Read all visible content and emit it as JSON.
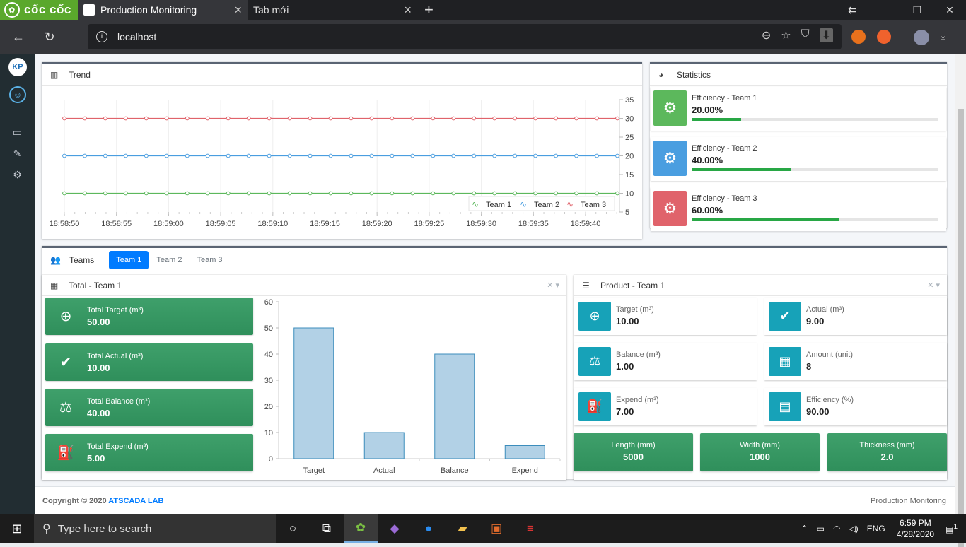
{
  "browser": {
    "brand": "cốc cốc",
    "tabs": [
      {
        "title": "Production Monitoring",
        "active": true
      },
      {
        "title": "Tab mới",
        "active": false
      }
    ],
    "url": "localhost"
  },
  "trend": {
    "title": "Trend",
    "legend": [
      "Team 1",
      "Team 2",
      "Team 3"
    ],
    "colors": [
      "#5cb85c",
      "#4a9ee0",
      "#e0636b"
    ]
  },
  "chart_data": [
    {
      "type": "line",
      "title": "Trend",
      "x": [
        "18:58:50",
        "18:58:55",
        "18:59:00",
        "18:59:05",
        "18:59:10",
        "18:59:15",
        "18:59:20",
        "18:59:25",
        "18:59:30",
        "18:59:35",
        "18:59:40"
      ],
      "points_per_series": 28,
      "series": [
        {
          "name": "Team 1",
          "value": 10
        },
        {
          "name": "Team 2",
          "value": 20
        },
        {
          "name": "Team 3",
          "value": 30
        }
      ],
      "yticks": [
        5,
        10,
        15,
        20,
        25,
        30,
        35
      ],
      "ylim": [
        5,
        35
      ],
      "legend_position": "bottom-right"
    },
    {
      "type": "bar",
      "categories": [
        "Target",
        "Actual",
        "Balance",
        "Expend"
      ],
      "values": [
        50,
        10,
        40,
        5
      ],
      "yticks": [
        0,
        10,
        20,
        30,
        40,
        50,
        60
      ],
      "ylim": [
        0,
        60
      ]
    }
  ],
  "statistics": {
    "title": "Statistics",
    "items": [
      {
        "label": "Efficiency - Team 1",
        "value": "20.00%",
        "percent": 20,
        "color": "#5cb85c"
      },
      {
        "label": "Efficiency - Team 2",
        "value": "40.00%",
        "percent": 40,
        "color": "#4a9ee0"
      },
      {
        "label": "Efficiency - Team 3",
        "value": "60.00%",
        "percent": 60,
        "color": "#e0636b"
      }
    ]
  },
  "teams": {
    "title": "Teams",
    "tabs": [
      "Team 1",
      "Team 2",
      "Team 3"
    ],
    "active": 0
  },
  "total": {
    "title": "Total - Team 1",
    "items": [
      {
        "label": "Total Target (m³)",
        "value": "50.00",
        "icon": "crosshair-icon"
      },
      {
        "label": "Total Actual (m³)",
        "value": "10.00",
        "icon": "check-circle-icon"
      },
      {
        "label": "Total Balance (m³)",
        "value": "40.00",
        "icon": "balance-scale-icon"
      },
      {
        "label": "Total Expend (m³)",
        "value": "5.00",
        "icon": "fill-drip-icon"
      }
    ]
  },
  "product": {
    "title": "Product - Team 1",
    "items": [
      {
        "label": "Target (m³)",
        "value": "10.00",
        "icon": "crosshair-icon"
      },
      {
        "label": "Actual (m³)",
        "value": "9.00",
        "icon": "check-circle-icon"
      },
      {
        "label": "Balance (m³)",
        "value": "1.00",
        "icon": "balance-scale-icon"
      },
      {
        "label": "Amount (unit)",
        "value": "8",
        "icon": "boxes-icon"
      },
      {
        "label": "Expend (m³)",
        "value": "7.00",
        "icon": "fill-drip-icon"
      },
      {
        "label": "Efficiency (%)",
        "value": "90.00",
        "icon": "file-icon"
      }
    ],
    "dimensions": [
      {
        "label": "Length (mm)",
        "value": "5000"
      },
      {
        "label": "Width (mm)",
        "value": "1000"
      },
      {
        "label": "Thickness (mm)",
        "value": "2.0"
      }
    ]
  },
  "footer": {
    "copyright": "Copyright © 2020 ",
    "lab": "ATSCADA LAB",
    "right": "Production Monitoring"
  },
  "taskbar": {
    "search_placeholder": "Type here to search",
    "lang": "ENG",
    "time": "6:59 PM",
    "date": "4/28/2020",
    "notifications": "1"
  }
}
